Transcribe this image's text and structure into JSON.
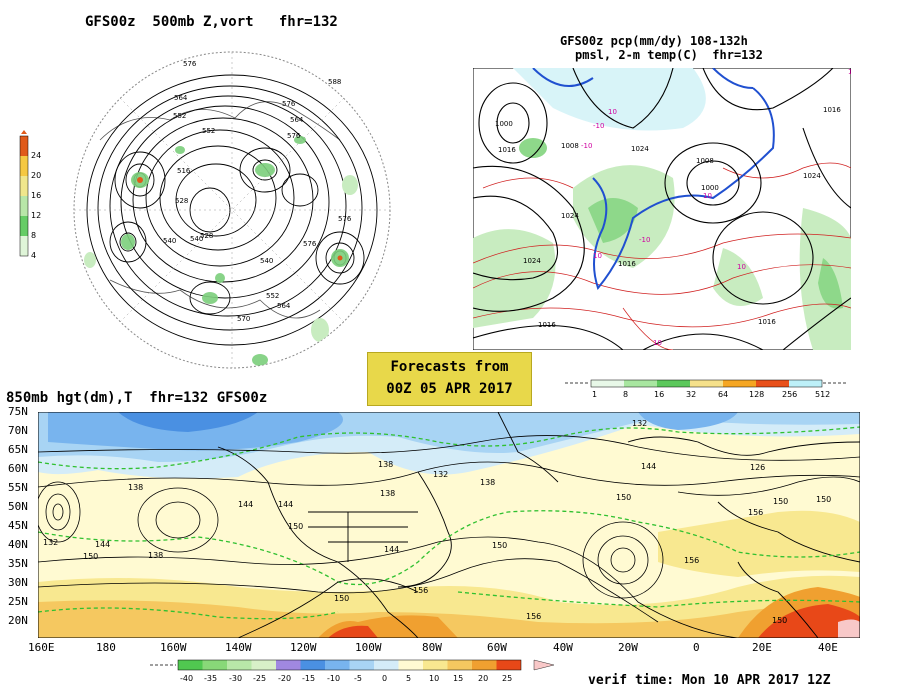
{
  "panels": {
    "top_left": {
      "title": "GFS00z  500mb Z,vort   fhr=132",
      "contour_labels": [
        "576",
        "564",
        "552",
        "588",
        "576",
        "564",
        "552",
        "528",
        "516",
        "540",
        "528",
        "576",
        "570",
        "552",
        "564",
        "576",
        "540",
        "540",
        "576"
      ],
      "colorbar": {
        "ticks": [
          "24",
          "20",
          "16",
          "12",
          "8",
          "4"
        ],
        "colors": [
          "#e05a1a",
          "#f5c842",
          "#f0e68c",
          "#b8e6a8",
          "#66cc66",
          "#dff5d8"
        ]
      }
    },
    "top_right": {
      "title_line1": "GFS00z pcp(mm/dy) 108-132h",
      "title_line2": "pmsl, 2-m temp(C)  fhr=132",
      "isobar_labels": [
        "1000",
        "1016",
        "1008",
        "1024",
        "1024",
        "1016",
        "1000",
        "1008",
        "1024",
        "1016",
        "1016",
        "1024",
        "1016"
      ],
      "temp_labels": [
        "-10",
        "10",
        "10",
        "10",
        "-10",
        "10",
        "10",
        "-10",
        "10"
      ],
      "colorbar": {
        "ticks": [
          "1",
          "8",
          "16",
          "32",
          "64",
          "128",
          "256",
          "512"
        ],
        "colors": [
          "#e8f8e8",
          "#a8e6a0",
          "#5cc85c",
          "#f5e08a",
          "#f5a623",
          "#e8501a",
          "#bdf0f8"
        ]
      }
    },
    "bottom": {
      "title": "850mb hgt(dm),T  fhr=132 GFS00z",
      "lat_labels": [
        "75N",
        "70N",
        "65N",
        "60N",
        "55N",
        "50N",
        "45N",
        "40N",
        "35N",
        "30N",
        "25N",
        "20N"
      ],
      "lon_labels": [
        "160E",
        "180",
        "160W",
        "140W",
        "120W",
        "100W",
        "80W",
        "60W",
        "40W",
        "20W",
        "0",
        "20E",
        "40E"
      ],
      "height_labels": [
        "132",
        "138",
        "144",
        "150",
        "138",
        "144",
        "150",
        "132",
        "138",
        "138",
        "144",
        "150",
        "156",
        "150",
        "156",
        "150",
        "150",
        "156",
        "132",
        "138",
        "126",
        "144",
        "156",
        "150",
        "150",
        "144"
      ],
      "temp_colorbar": {
        "ticks": [
          "-40",
          "-35",
          "-30",
          "-25",
          "-20",
          "-15",
          "-10",
          "-5",
          "0",
          "5",
          "10",
          "15",
          "20",
          "25"
        ],
        "colors": [
          "#50c850",
          "#88d878",
          "#b8e8a8",
          "#d8f0c8",
          "#a088e0",
          "#4a90e2",
          "#78b4ee",
          "#a8d4f4",
          "#d4ecf8",
          "#fffad2",
          "#f8e890",
          "#f5c860",
          "#f0a030",
          "#e84818",
          "#f8c8c8"
        ]
      }
    },
    "forecast_box": {
      "line1": "Forecasts from",
      "line2": "00Z 05 APR 2017"
    },
    "verif_time": "verif time: Mon 10 APR 2017 12Z"
  }
}
